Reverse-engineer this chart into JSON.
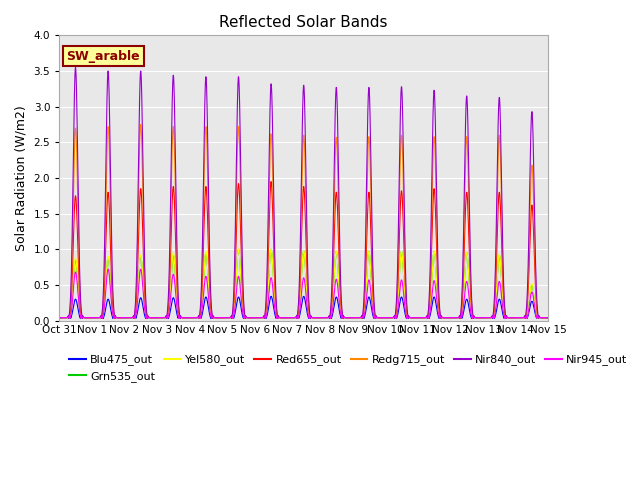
{
  "title": "Reflected Solar Bands",
  "xlabel": "",
  "ylabel": "Solar Radiation (W/m2)",
  "ylim": [
    0,
    4.0
  ],
  "yticks": [
    0.0,
    0.5,
    1.0,
    1.5,
    2.0,
    2.5,
    3.0,
    3.5,
    4.0
  ],
  "annotation_text": "SW_arable",
  "annotation_color": "#8B0000",
  "annotation_bg": "#FFFF99",
  "annotation_border": "#8B0000",
  "series": [
    {
      "name": "Blu475_out",
      "color": "#0000FF"
    },
    {
      "name": "Grn535_out",
      "color": "#00CC00"
    },
    {
      "name": "Yel580_out",
      "color": "#FFFF00"
    },
    {
      "name": "Red655_out",
      "color": "#FF0000"
    },
    {
      "name": "Redg715_out",
      "color": "#FF8800"
    },
    {
      "name": "Nir840_out",
      "color": "#9900CC"
    },
    {
      "name": "Nir945_out",
      "color": "#FF00FF"
    }
  ],
  "x_tick_labels": [
    "Oct 31",
    "Nov 1",
    "Nov 2",
    "Nov 3",
    "Nov 4",
    "Nov 5",
    "Nov 6",
    "Nov 7",
    "Nov 8",
    "Nov 9",
    "Nov 10",
    "Nov 11",
    "Nov 12",
    "Nov 13",
    "Nov 14",
    "Nov 15"
  ],
  "n_days": 16,
  "peak_heights": {
    "Blu475_out": [
      0.3,
      0.3,
      0.32,
      0.32,
      0.33,
      0.33,
      0.34,
      0.34,
      0.33,
      0.33,
      0.33,
      0.33,
      0.3,
      0.3,
      0.27,
      0.0
    ],
    "Grn535_out": [
      0.85,
      0.88,
      0.9,
      0.92,
      0.95,
      1.0,
      1.0,
      0.98,
      0.97,
      0.97,
      0.97,
      0.97,
      0.95,
      0.92,
      0.5,
      0.0
    ],
    "Yel580_out": [
      0.88,
      0.9,
      0.92,
      0.95,
      0.97,
      1.0,
      1.0,
      0.98,
      0.97,
      0.97,
      0.97,
      0.97,
      0.95,
      0.93,
      0.52,
      0.0
    ],
    "Red655_out": [
      1.75,
      1.8,
      1.85,
      1.88,
      1.88,
      1.92,
      1.95,
      1.88,
      1.8,
      1.8,
      1.82,
      1.85,
      1.8,
      1.8,
      1.62,
      0.0
    ],
    "Redg715_out": [
      2.7,
      2.72,
      2.75,
      2.72,
      2.72,
      2.72,
      2.62,
      2.6,
      2.57,
      2.58,
      2.6,
      2.58,
      2.58,
      2.6,
      2.18,
      0.0
    ],
    "Nir840_out": [
      3.55,
      3.5,
      3.5,
      3.44,
      3.42,
      3.42,
      3.32,
      3.3,
      3.27,
      3.27,
      3.28,
      3.23,
      3.15,
      3.13,
      2.93,
      0.0
    ],
    "Nir945_out": [
      0.68,
      0.72,
      0.72,
      0.65,
      0.62,
      0.62,
      0.6,
      0.6,
      0.58,
      0.57,
      0.57,
      0.56,
      0.55,
      0.55,
      0.4,
      0.0
    ]
  },
  "background_color": "#E8E8E8",
  "figure_bg": "#FFFFFF",
  "title_fontsize": 11,
  "label_fontsize": 9,
  "tick_fontsize": 7.5,
  "legend_fontsize": 8
}
